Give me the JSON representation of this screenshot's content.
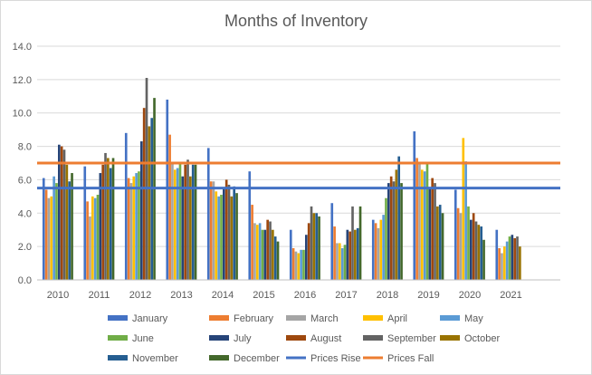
{
  "chart_data": {
    "type": "bar",
    "title": "Months of Inventory",
    "xlabel": "",
    "ylabel": "",
    "ylim": [
      0,
      14
    ],
    "ytick_labels": [
      "0.0",
      "2.0",
      "4.0",
      "6.0",
      "8.0",
      "10.0",
      "12.0",
      "14.0"
    ],
    "grid": true,
    "legend_position": "bottom",
    "categories": [
      "2010",
      "2011",
      "2012",
      "2013",
      "2014",
      "2015",
      "2016",
      "2017",
      "2018",
      "2019",
      "2020",
      "2021"
    ],
    "series": [
      {
        "name": "January",
        "color": "#4472C4",
        "values": [
          6.1,
          6.8,
          8.8,
          10.8,
          7.9,
          6.5,
          3.0,
          4.6,
          3.6,
          8.9,
          5.4,
          3.0
        ]
      },
      {
        "name": "February",
        "color": "#ED7D31",
        "values": [
          5.4,
          4.7,
          6.1,
          8.7,
          5.9,
          4.5,
          1.9,
          3.2,
          3.4,
          7.3,
          4.3,
          1.9
        ]
      },
      {
        "name": "March",
        "color": "#A5A5A5",
        "values": [
          4.9,
          3.8,
          5.8,
          7.0,
          5.9,
          3.4,
          1.7,
          2.2,
          3.1,
          7.0,
          4.0,
          1.6
        ]
      },
      {
        "name": "April",
        "color": "#FFC000",
        "values": [
          5.0,
          5.0,
          6.2,
          6.6,
          5.3,
          3.3,
          1.6,
          2.2,
          3.6,
          6.6,
          8.5,
          2.0
        ]
      },
      {
        "name": "May",
        "color": "#5B9BD5",
        "values": [
          6.2,
          4.9,
          6.4,
          6.7,
          5.0,
          3.4,
          1.8,
          1.9,
          3.9,
          6.5,
          7.1,
          2.3
        ]
      },
      {
        "name": "June",
        "color": "#70AD47",
        "values": [
          5.8,
          5.1,
          6.5,
          7.0,
          5.1,
          3.0,
          1.8,
          2.1,
          4.9,
          7.0,
          4.4,
          2.6
        ]
      },
      {
        "name": "July",
        "color": "#264478",
        "values": [
          8.1,
          6.4,
          8.3,
          6.2,
          5.5,
          3.0,
          2.7,
          3.0,
          5.8,
          5.5,
          3.6,
          2.7
        ]
      },
      {
        "name": "August",
        "color": "#9E480E",
        "values": [
          8.0,
          6.9,
          10.3,
          6.9,
          6.0,
          3.6,
          3.4,
          2.9,
          6.2,
          6.1,
          4.0,
          2.5
        ]
      },
      {
        "name": "September",
        "color": "#636363",
        "values": [
          7.8,
          7.6,
          12.1,
          7.2,
          5.7,
          3.5,
          4.4,
          4.4,
          5.9,
          5.8,
          3.5,
          2.6
        ]
      },
      {
        "name": "October",
        "color": "#997300",
        "values": [
          6.9,
          7.3,
          9.2,
          6.2,
          5.0,
          3.0,
          4.0,
          3.0,
          6.6,
          4.4,
          3.3,
          2.0
        ]
      },
      {
        "name": "November",
        "color": "#255E91",
        "values": [
          5.9,
          6.7,
          9.7,
          6.9,
          5.6,
          2.6,
          4.0,
          3.1,
          7.4,
          4.5,
          3.2,
          0
        ]
      },
      {
        "name": "December",
        "color": "#43682B",
        "values": [
          6.4,
          7.3,
          10.9,
          6.9,
          5.2,
          2.3,
          3.8,
          4.4,
          5.8,
          4.0,
          2.4,
          0
        ]
      }
    ],
    "reference_lines": [
      {
        "name": "Prices Rise",
        "color": "#4472C4",
        "value": 5.5
      },
      {
        "name": "Prices Fall",
        "color": "#ED7D31",
        "value": 7.0
      }
    ]
  }
}
